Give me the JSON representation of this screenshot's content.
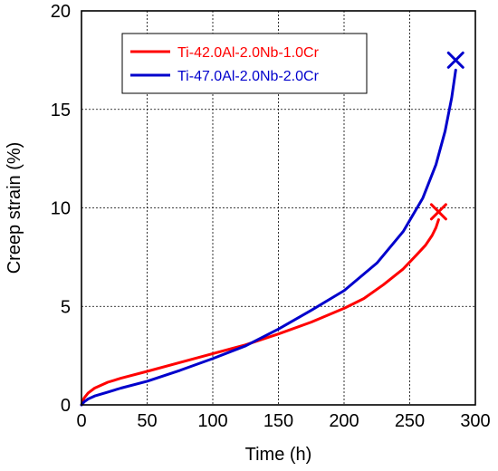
{
  "chart_data": {
    "type": "line",
    "xlabel": "Time (h)",
    "ylabel": "Creep strain (%)",
    "xlim": [
      0,
      300
    ],
    "ylim": [
      0,
      20
    ],
    "xticks": [
      0,
      50,
      100,
      150,
      200,
      250,
      300
    ],
    "yticks": [
      0,
      5,
      10,
      15,
      20
    ],
    "grid": true,
    "legend_position": "top-left",
    "series": [
      {
        "name": "Ti-42.0Al-2.0Nb-1.0Cr",
        "color": "#ff0000",
        "x": [
          0,
          2,
          5,
          10,
          20,
          30,
          50,
          75,
          100,
          125,
          150,
          175,
          200,
          215,
          230,
          245,
          255,
          262,
          267,
          270,
          272
        ],
        "y": [
          0,
          0.35,
          0.6,
          0.85,
          1.15,
          1.35,
          1.7,
          2.15,
          2.6,
          3.05,
          3.6,
          4.2,
          4.9,
          5.4,
          6.1,
          6.9,
          7.6,
          8.1,
          8.6,
          9.0,
          9.4
        ],
        "fracture": {
          "x": 272,
          "y": 9.8
        }
      },
      {
        "name": "Ti-47.0Al-2.0Nb-2.0Cr",
        "color": "#0000cc",
        "x": [
          0,
          2,
          5,
          10,
          20,
          30,
          50,
          75,
          100,
          125,
          150,
          175,
          200,
          225,
          245,
          260,
          270,
          277,
          282,
          285
        ],
        "y": [
          0,
          0.15,
          0.3,
          0.45,
          0.65,
          0.85,
          1.2,
          1.75,
          2.35,
          3.0,
          3.85,
          4.8,
          5.8,
          7.2,
          8.8,
          10.5,
          12.2,
          13.9,
          15.6,
          17.0
        ],
        "fracture": {
          "x": 285,
          "y": 17.5
        }
      }
    ]
  }
}
